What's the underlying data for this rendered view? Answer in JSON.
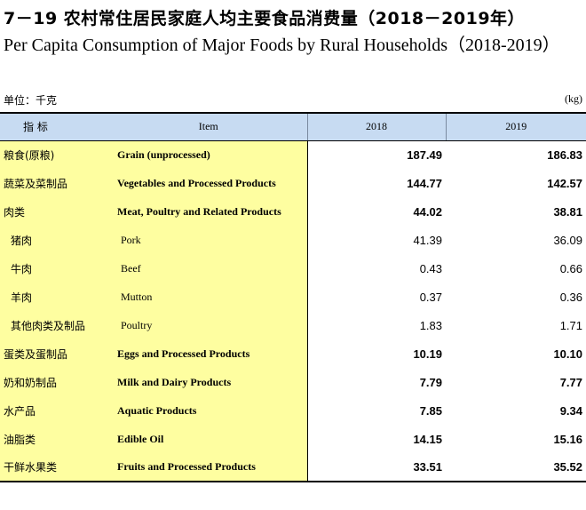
{
  "title_cn": "7－19  农村常住居民家庭人均主要食品消费量（2018－2019年）",
  "title_en": "Per Capita Consumption of Major Foods by Rural Households（2018-2019）",
  "unit_left": "单位：千克",
  "unit_right": "(kg)",
  "headers": {
    "indicator": "指      标",
    "item": "Item",
    "year1": "2018",
    "year2": "2019"
  },
  "rows": [
    {
      "cn": "粮食(原粮)",
      "en": "Grain (unprocessed)",
      "y2018": "187.49",
      "y2019": "186.83",
      "level": "main"
    },
    {
      "cn": "蔬菜及菜制品",
      "en": "Vegetables and Processed Products",
      "y2018": "144.77",
      "y2019": "142.57",
      "level": "main"
    },
    {
      "cn": "肉类",
      "en": "Meat, Poultry and Related Products",
      "y2018": "44.02",
      "y2019": "38.81",
      "level": "main"
    },
    {
      "cn": "猪肉",
      "en": "Pork",
      "y2018": "41.39",
      "y2019": "36.09",
      "level": "sub"
    },
    {
      "cn": "牛肉",
      "en": "Beef",
      "y2018": "0.43",
      "y2019": "0.66",
      "level": "sub"
    },
    {
      "cn": "羊肉",
      "en": "Mutton",
      "y2018": "0.37",
      "y2019": "0.36",
      "level": "sub"
    },
    {
      "cn": "其他肉类及制品",
      "en": "Poultry",
      "y2018": "1.83",
      "y2019": "1.71",
      "level": "sub"
    },
    {
      "cn": "蛋类及蛋制品",
      "en": "Eggs and Processed Products",
      "y2018": "10.19",
      "y2019": "10.10",
      "level": "main"
    },
    {
      "cn": "奶和奶制品",
      "en": "Milk and Dairy Products",
      "y2018": "7.79",
      "y2019": "7.77",
      "level": "main"
    },
    {
      "cn": "水产品",
      "en": "Aquatic Products",
      "y2018": "7.85",
      "y2019": "9.34",
      "level": "main"
    },
    {
      "cn": "油脂类",
      "en": "Edible Oil",
      "y2018": "14.15",
      "y2019": "15.16",
      "level": "main"
    },
    {
      "cn": "干鲜水果类",
      "en": "Fruits and Processed Products",
      "y2018": "33.51",
      "y2019": "35.52",
      "level": "main"
    }
  ]
}
